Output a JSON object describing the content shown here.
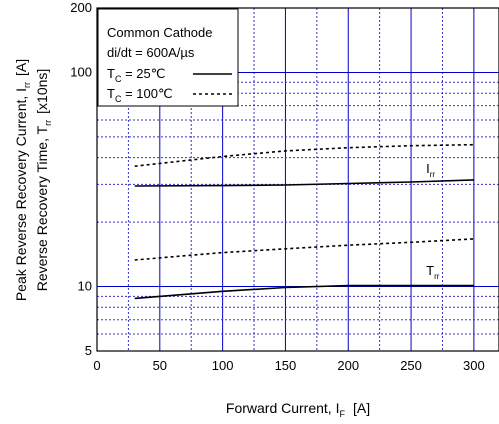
{
  "chart_data": {
    "type": "line",
    "xlabel": "Forward Current, I",
    "xlabel_sub": "F",
    "xlabel_unit": "[A]",
    "ylabel_lines": [
      {
        "text": "Peak Reverse Recovery Current, I",
        "sub": "rr",
        "unit": "[A]"
      },
      {
        "text": "Reverse Recovery Time, T",
        "sub": "rr",
        "unit": "[x10ns]"
      }
    ],
    "x_scale": "linear",
    "y_scale": "log",
    "xlim": [
      0,
      320
    ],
    "ylim": [
      5,
      200
    ],
    "x_ticks": [
      0,
      50,
      100,
      150,
      200,
      250,
      300
    ],
    "y_tick_labels": [
      {
        "value": 5,
        "label": "5"
      },
      {
        "value": 10,
        "label": "10"
      },
      {
        "value": 100,
        "label": "100"
      },
      {
        "value": 200,
        "label": "200"
      }
    ],
    "grid": true,
    "legend": {
      "position": "top-left",
      "lines": [
        "Common Cathode",
        "di/dt = 600A/µs"
      ],
      "entries": [
        {
          "prefix": "T",
          "sub": "C",
          "suffix": " = 25℃",
          "style": "solid"
        },
        {
          "prefix": "T",
          "sub": "C",
          "suffix": " = 100℃",
          "style": "dashed"
        }
      ]
    },
    "annotations": [
      {
        "text": "I",
        "sub": "rr",
        "x": 262,
        "y": 34
      },
      {
        "text": "T",
        "sub": "rr",
        "x": 262,
        "y": 11.3
      }
    ],
    "series": [
      {
        "curve": "Irr",
        "temp": "25C",
        "style": "solid",
        "color": "#000000",
        "x": [
          30,
          100,
          150,
          200,
          250,
          300
        ],
        "y": [
          29.5,
          29.6,
          29.8,
          30.3,
          30.8,
          31.5
        ]
      },
      {
        "curve": "Irr",
        "temp": "100C",
        "style": "dashed",
        "color": "#000000",
        "x": [
          30,
          100,
          150,
          200,
          250,
          300
        ],
        "y": [
          36.5,
          40.5,
          43,
          44.5,
          45.5,
          46
        ]
      },
      {
        "curve": "Trr",
        "temp": "25C",
        "style": "solid",
        "color": "#000000",
        "x": [
          30,
          100,
          150,
          200,
          250,
          300
        ],
        "y": [
          8.8,
          9.5,
          9.9,
          10.1,
          10.1,
          10.1
        ]
      },
      {
        "curve": "Trr",
        "temp": "100C",
        "style": "dashed",
        "color": "#000000",
        "x": [
          30,
          100,
          150,
          200,
          250,
          300
        ],
        "y": [
          13.3,
          14.4,
          15,
          15.6,
          16.1,
          16.7
        ]
      }
    ],
    "colors": {
      "major_grid": "#0000cc",
      "minor_grid": "#3333cc"
    }
  }
}
